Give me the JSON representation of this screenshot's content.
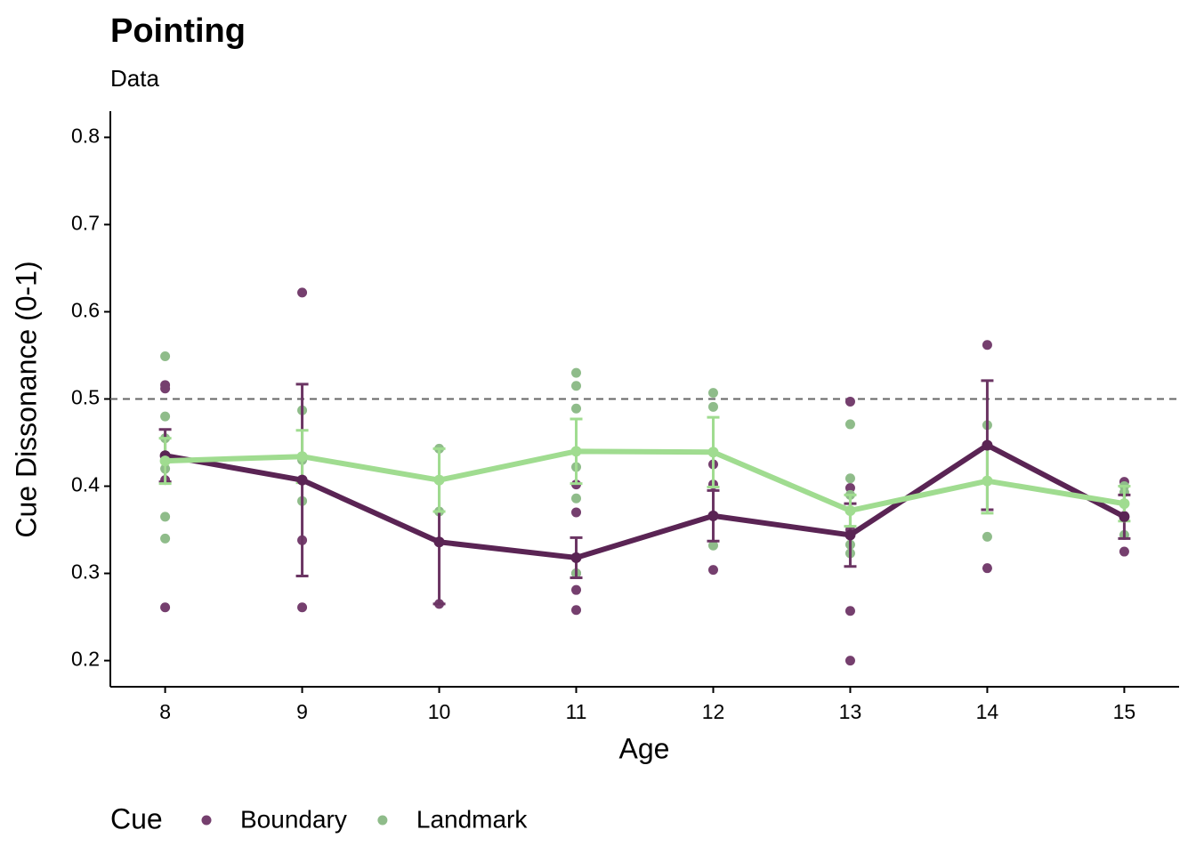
{
  "chart_data": {
    "type": "line",
    "title": "Pointing",
    "subtitle": "Data",
    "x_label": "Age",
    "y_label": "Cue Dissonance (0-1)",
    "legend_title": "Cue",
    "legend_position": "bottom",
    "x": [
      8,
      9,
      10,
      11,
      12,
      13,
      14,
      15
    ],
    "xlim": [
      7.6,
      15.4
    ],
    "xticks": [
      8,
      9,
      10,
      11,
      12,
      13,
      14,
      15
    ],
    "ylim": [
      0.17,
      0.83
    ],
    "yticks": [
      0.2,
      0.3,
      0.4,
      0.5,
      0.6,
      0.7,
      0.8
    ],
    "hline": 0.5,
    "series": [
      {
        "name": "Boundary",
        "color": "#5a2454",
        "point_color": "#753f6e",
        "values": [
          0.435,
          0.407,
          0.336,
          0.318,
          0.366,
          0.344,
          0.447,
          0.365
        ],
        "errors": [
          0.03,
          0.11,
          0.071,
          0.023,
          0.029,
          0.036,
          0.074,
          0.025
        ],
        "points": {
          "x": [
            8,
            8,
            8,
            8,
            8,
            9,
            9,
            9,
            9,
            10,
            10,
            11,
            11,
            11,
            11,
            11,
            12,
            12,
            12,
            13,
            13,
            13,
            13,
            13,
            14,
            14,
            15,
            15,
            15
          ],
          "y": [
            0.516,
            0.512,
            0.435,
            0.407,
            0.261,
            0.622,
            0.407,
            0.338,
            0.261,
            0.407,
            0.265,
            0.402,
            0.37,
            0.3,
            0.281,
            0.258,
            0.425,
            0.402,
            0.304,
            0.497,
            0.398,
            0.35,
            0.257,
            0.2,
            0.562,
            0.306,
            0.405,
            0.366,
            0.325
          ]
        }
      },
      {
        "name": "Landmark",
        "color": "#a0dc90",
        "point_color": "#8fbc8a",
        "values": [
          0.429,
          0.434,
          0.407,
          0.44,
          0.439,
          0.372,
          0.406,
          0.38
        ],
        "errors": [
          0.026,
          0.03,
          0.036,
          0.037,
          0.04,
          0.018,
          0.037,
          0.02
        ],
        "points": {
          "x": [
            8,
            8,
            8,
            8,
            8,
            8,
            9,
            9,
            9,
            10,
            10,
            11,
            11,
            11,
            11,
            11,
            11,
            12,
            12,
            12,
            13,
            13,
            13,
            13,
            13,
            14,
            14,
            14,
            15,
            15,
            15
          ],
          "y": [
            0.549,
            0.48,
            0.455,
            0.42,
            0.365,
            0.34,
            0.487,
            0.43,
            0.383,
            0.443,
            0.371,
            0.53,
            0.515,
            0.489,
            0.422,
            0.386,
            0.3,
            0.507,
            0.491,
            0.332,
            0.471,
            0.409,
            0.39,
            0.333,
            0.323,
            0.47,
            0.406,
            0.342,
            0.4,
            0.393,
            0.344
          ]
        }
      }
    ]
  }
}
